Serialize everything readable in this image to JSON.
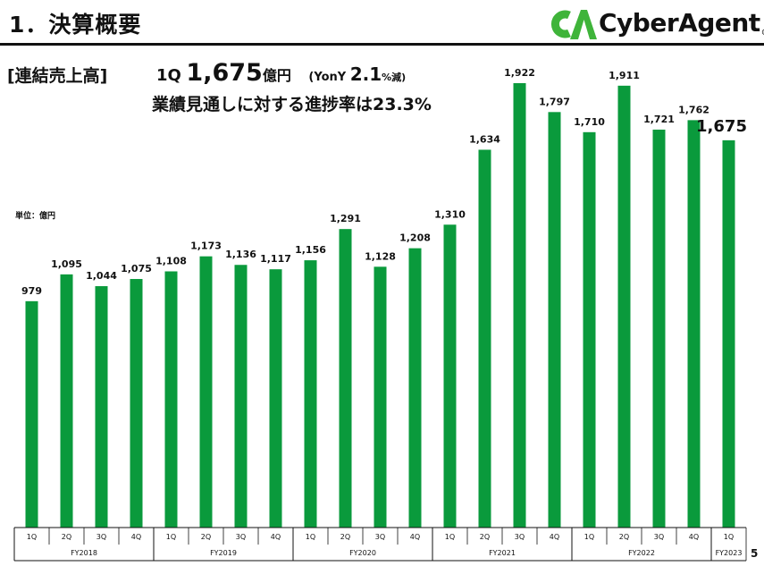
{
  "header": {
    "title": "1．決算概要",
    "logo_text": "CyberAgent",
    "logo_reg": "®"
  },
  "section_label": "[連結売上高]",
  "headline": {
    "quarter": "1Q",
    "amount": "1,675",
    "amount_unit": "億円",
    "yoy_prefix": "(YonY",
    "yoy_value": "2.1",
    "yoy_suffix": "%減)"
  },
  "subline": "業績見通しに対する進捗率は23.3%",
  "unit_note": "単位：億円",
  "page_number": "5",
  "colors": {
    "bar": "#0a9a3c",
    "logo_green": "#3fb43a",
    "text": "#111111"
  },
  "chart_data": {
    "type": "bar",
    "categories": [
      "1Q",
      "2Q",
      "3Q",
      "4Q",
      "1Q",
      "2Q",
      "3Q",
      "4Q",
      "1Q",
      "2Q",
      "3Q",
      "4Q",
      "1Q",
      "2Q",
      "3Q",
      "4Q",
      "1Q",
      "2Q",
      "3Q",
      "4Q",
      "1Q"
    ],
    "groups": [
      {
        "label": "FY2018",
        "count": 4
      },
      {
        "label": "FY2019",
        "count": 4
      },
      {
        "label": "FY2020",
        "count": 4
      },
      {
        "label": "FY2021",
        "count": 4
      },
      {
        "label": "FY2022",
        "count": 4
      },
      {
        "label": "FY2023",
        "count": 1
      }
    ],
    "values": [
      979,
      1095,
      1044,
      1075,
      1108,
      1173,
      1136,
      1117,
      1156,
      1291,
      1128,
      1208,
      1310,
      1634,
      1922,
      1797,
      1710,
      1911,
      1721,
      1762,
      1675
    ],
    "value_labels": [
      "979",
      "1,095",
      "1,044",
      "1,075",
      "1,108",
      "1,173",
      "1,136",
      "1,117",
      "1,156",
      "1,291",
      "1,128",
      "1,208",
      "1,310",
      "1,634",
      "1,922",
      "1,797",
      "1,710",
      "1,911",
      "1,721",
      "1,762",
      "1,675"
    ],
    "ylim": [
      0,
      2000
    ],
    "grid": false,
    "legend": "none"
  }
}
